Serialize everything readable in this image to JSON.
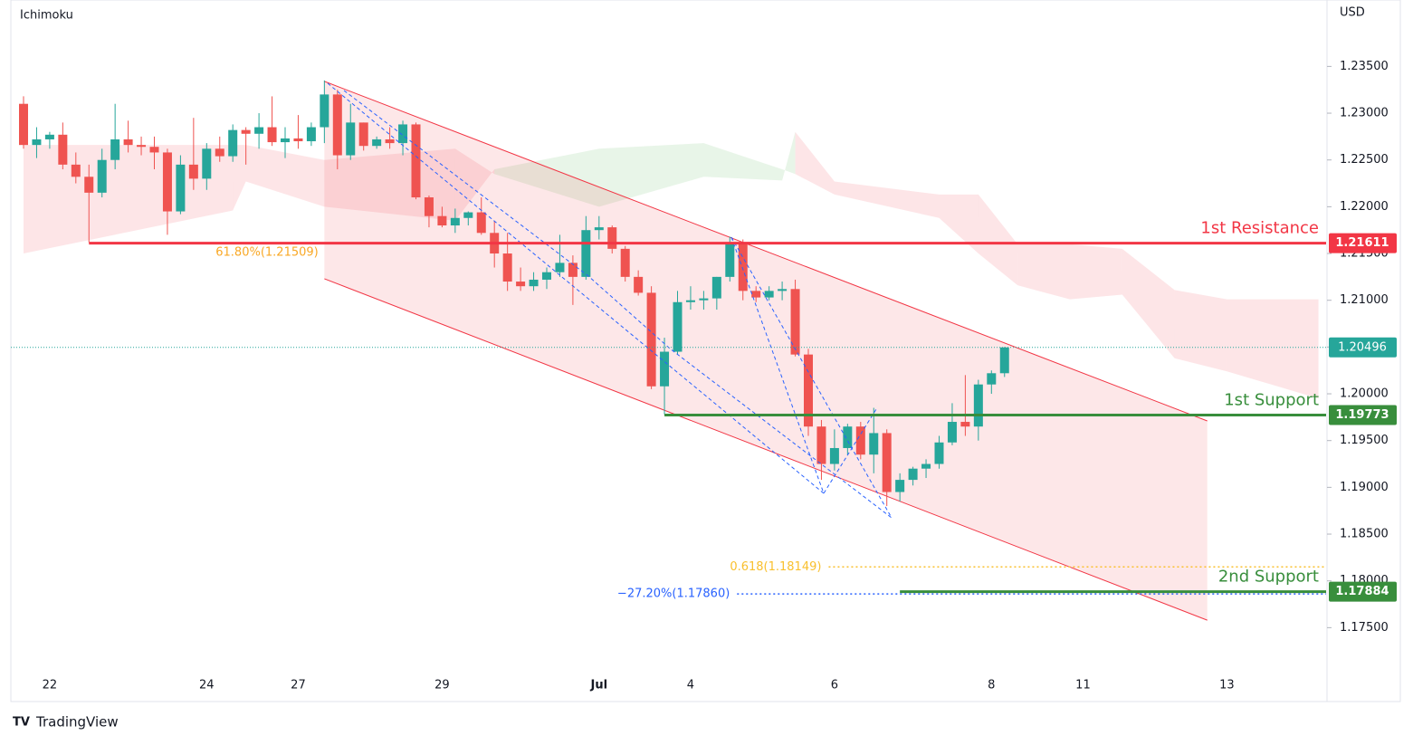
{
  "chart_data": {
    "type": "candlestick",
    "indicator": "Ichimoku",
    "currency": "USD",
    "brand": "TradingView",
    "categories": [
      null,
      null,
      "22",
      null,
      null,
      null,
      null,
      null,
      null,
      null,
      null,
      null,
      null,
      null,
      "24",
      null,
      null,
      null,
      null,
      null,
      null,
      "27",
      null,
      null,
      null,
      null,
      null,
      null,
      null,
      null,
      null,
      null,
      "29",
      null,
      null,
      null,
      null,
      null,
      null,
      null,
      null,
      null,
      null,
      null,
      "Jul",
      null,
      null,
      null,
      null,
      null,
      null,
      "4",
      null,
      null,
      null,
      null,
      null,
      null,
      null,
      null,
      null,
      null,
      "6",
      null,
      null,
      null,
      null,
      null,
      null,
      null,
      null,
      null,
      null,
      null,
      "8",
      null,
      null,
      null,
      null,
      null,
      null,
      "11",
      null,
      null,
      null,
      null,
      null,
      null,
      null,
      null,
      null,
      null,
      "13",
      null,
      null,
      null,
      null,
      null,
      null,
      null
    ],
    "open": [
      1.231,
      1.2266,
      1.2272,
      1.2277,
      1.2245,
      1.2232,
      1.2215,
      1.225,
      1.2272,
      1.2266,
      1.2264,
      1.2258,
      1.2195,
      1.2245,
      1.223,
      1.2262,
      1.2254,
      1.2282,
      1.2278,
      1.2285,
      1.2269,
      1.2273,
      1.227,
      1.2285,
      1.232,
      1.2255,
      1.229,
      1.2265,
      1.2272,
      1.2268,
      1.2288,
      1.221,
      1.219,
      1.218,
      1.2188,
      1.2194,
      1.2172,
      1.215,
      1.212,
      1.2115,
      1.2122,
      1.213,
      1.214,
      1.2125,
      1.2175,
      1.2178,
      1.2155,
      1.2125,
      1.2108,
      1.2008,
      1.2045,
      1.2098,
      1.21,
      1.2102,
      1.2125,
      1.216,
      1.211,
      1.2103,
      1.211,
      1.2112,
      1.2042,
      1.1965,
      1.1925,
      1.1942,
      1.1965,
      1.1935,
      1.1958,
      1.1895,
      1.1908,
      1.192,
      1.1925,
      1.1948,
      1.197,
      1.1965,
      1.201,
      1.2022,
      null,
      null,
      null,
      null,
      null,
      null,
      null,
      null,
      null,
      null,
      null,
      null,
      null,
      null,
      null,
      null,
      null,
      null,
      null,
      null,
      null,
      null,
      null,
      null
    ],
    "high": [
      1.2318,
      1.2285,
      1.228,
      1.229,
      1.2258,
      1.2245,
      1.2262,
      1.231,
      1.2292,
      1.2275,
      1.2275,
      1.2262,
      1.2255,
      1.2295,
      1.2268,
      1.2275,
      1.2288,
      1.2285,
      1.23,
      1.2318,
      1.2285,
      1.2298,
      1.229,
      1.2335,
      1.2325,
      1.231,
      1.229,
      1.2275,
      1.2285,
      1.2292,
      1.229,
      1.2212,
      1.22,
      1.2198,
      1.2195,
      1.221,
      1.2185,
      1.2172,
      1.2135,
      1.213,
      1.2135,
      1.217,
      1.2148,
      1.219,
      1.219,
      1.218,
      1.2158,
      1.2132,
      1.2115,
      1.206,
      1.211,
      1.2115,
      1.211,
      1.2125,
      1.2168,
      1.2165,
      1.2115,
      1.2115,
      1.212,
      1.2122,
      1.2048,
      1.1972,
      1.1962,
      1.1968,
      1.197,
      1.1985,
      1.1962,
      1.1915,
      1.1922,
      1.193,
      1.1955,
      1.199,
      1.202,
      1.2015,
      1.2025,
      1.205,
      null,
      null,
      null,
      null,
      null,
      null,
      null,
      null,
      null,
      null,
      null,
      null,
      null,
      null,
      null,
      null,
      null,
      null,
      null,
      null,
      null,
      null,
      null,
      null
    ],
    "low": [
      1.2262,
      1.2252,
      1.2262,
      1.224,
      1.2225,
      1.2162,
      1.221,
      1.224,
      1.2258,
      1.2255,
      1.224,
      1.217,
      1.2192,
      1.2218,
      1.2218,
      1.2248,
      1.2248,
      1.2245,
      1.2262,
      1.2265,
      1.2252,
      1.2262,
      1.2265,
      1.2268,
      1.224,
      1.225,
      1.226,
      1.2262,
      1.2262,
      1.2255,
      1.2208,
      1.2178,
      1.2178,
      1.2172,
      1.218,
      1.217,
      1.2135,
      1.211,
      1.211,
      1.211,
      1.2112,
      1.2125,
      1.2095,
      1.2122,
      1.2165,
      1.215,
      1.212,
      1.2105,
      1.2005,
      1.1978,
      1.2042,
      1.209,
      1.209,
      1.209,
      1.212,
      1.21,
      1.2098,
      1.21,
      1.21,
      1.204,
      1.1955,
      1.1908,
      1.1918,
      1.1935,
      1.193,
      1.1915,
      1.188,
      1.1885,
      1.1902,
      1.191,
      1.192,
      1.1945,
      1.1955,
      1.195,
      1.2,
      1.2018,
      null,
      null,
      null,
      null,
      null,
      null,
      null,
      null,
      null,
      null,
      null,
      null,
      null,
      null,
      null,
      null,
      null,
      null,
      null,
      null,
      null,
      null,
      null,
      null
    ],
    "close": [
      1.2266,
      1.2272,
      1.2277,
      1.2245,
      1.2232,
      1.2215,
      1.225,
      1.2272,
      1.2266,
      1.2264,
      1.2258,
      1.2195,
      1.2245,
      1.223,
      1.2262,
      1.2254,
      1.2282,
      1.2278,
      1.2285,
      1.2269,
      1.2273,
      1.227,
      1.2285,
      1.232,
      1.2255,
      1.229,
      1.2265,
      1.2272,
      1.2268,
      1.2288,
      1.221,
      1.219,
      1.218,
      1.2188,
      1.2194,
      1.2172,
      1.215,
      1.212,
      1.2115,
      1.2122,
      1.213,
      1.214,
      1.2125,
      1.2175,
      1.2178,
      1.2155,
      1.2125,
      1.2108,
      1.2008,
      1.2045,
      1.2098,
      1.21,
      1.2102,
      1.2125,
      1.216,
      1.211,
      1.2103,
      1.211,
      1.2112,
      1.2042,
      1.1965,
      1.1925,
      1.1942,
      1.1965,
      1.1935,
      1.1958,
      1.1895,
      1.1908,
      1.192,
      1.1925,
      1.1948,
      1.197,
      1.1965,
      1.201,
      1.2022,
      1.20496,
      null,
      null,
      null,
      null,
      null,
      null,
      null,
      null,
      null,
      null,
      null,
      null,
      null,
      null,
      null,
      null,
      null,
      null,
      null,
      null,
      null,
      null,
      null,
      null
    ],
    "up_color": "#26a69a",
    "down_color": "#ef5350",
    "ylim": [
      1.1671,
      1.2421
    ],
    "yticks": [
      {
        "value": 1.175,
        "label": "1.17500"
      },
      {
        "value": 1.18,
        "label": "1.18000"
      },
      {
        "value": 1.185,
        "label": "1.18500"
      },
      {
        "value": 1.19,
        "label": "1.19000"
      },
      {
        "value": 1.195,
        "label": "1.19500"
      },
      {
        "value": 1.2,
        "label": "1.20000"
      },
      {
        "value": 1.205,
        "label": "1.20500"
      },
      {
        "value": 1.21,
        "label": "1.21000"
      },
      {
        "value": 1.215,
        "label": "1.21500"
      },
      {
        "value": 1.22,
        "label": "1.22000"
      },
      {
        "value": 1.225,
        "label": "1.22500"
      },
      {
        "value": 1.23,
        "label": "1.23000"
      },
      {
        "value": 1.235,
        "label": "1.23500"
      }
    ],
    "cloud": {
      "x": [
        0,
        16,
        17,
        23,
        33,
        36,
        44,
        52,
        58,
        59,
        62,
        70,
        73,
        76,
        80,
        84,
        88,
        92,
        99
      ],
      "span_a": [
        1.215,
        1.2196,
        1.2227,
        1.22,
        1.2185,
        1.224,
        1.2262,
        1.2268,
        1.224,
        1.2235,
        1.2213,
        1.2188,
        1.215,
        1.2116,
        1.2101,
        1.2106,
        1.2038,
        1.2024,
        1.1995
      ],
      "span_b": [
        1.2266,
        1.2266,
        1.2266,
        1.225,
        1.2262,
        1.2235,
        1.22,
        1.2232,
        1.2228,
        1.228,
        1.2227,
        1.2213,
        1.2213,
        1.216,
        1.216,
        1.2155,
        1.2111,
        1.2101,
        1.2101
      ]
    },
    "channel": {
      "x": [
        23,
        90.5
      ],
      "upper": [
        1.2334,
        1.1971
      ],
      "lower": [
        1.2123,
        1.1758
      ]
    },
    "last_price": 1.20496,
    "levels": [
      {
        "label": "1st Resistance",
        "value": 1.21611,
        "from": 5,
        "color": "#f23645"
      },
      {
        "label": "1st Support",
        "value": 1.19773,
        "from": 49,
        "color": "#388e3c"
      },
      {
        "label": "2nd Support",
        "value": 1.17884,
        "from": 67,
        "color": "#388e3c"
      }
    ],
    "fib_labels": [
      {
        "label": "61.80%(1.21509)",
        "value": 1.21509,
        "color": "#f9a825"
      },
      {
        "label": "0.618(1.18149)",
        "value": 1.18149,
        "from": 61,
        "color": "#f9c02e"
      },
      {
        "label": "−27.20%(1.17860)",
        "value": 1.1786,
        "from": 54,
        "color": "#2962ff"
      }
    ]
  }
}
